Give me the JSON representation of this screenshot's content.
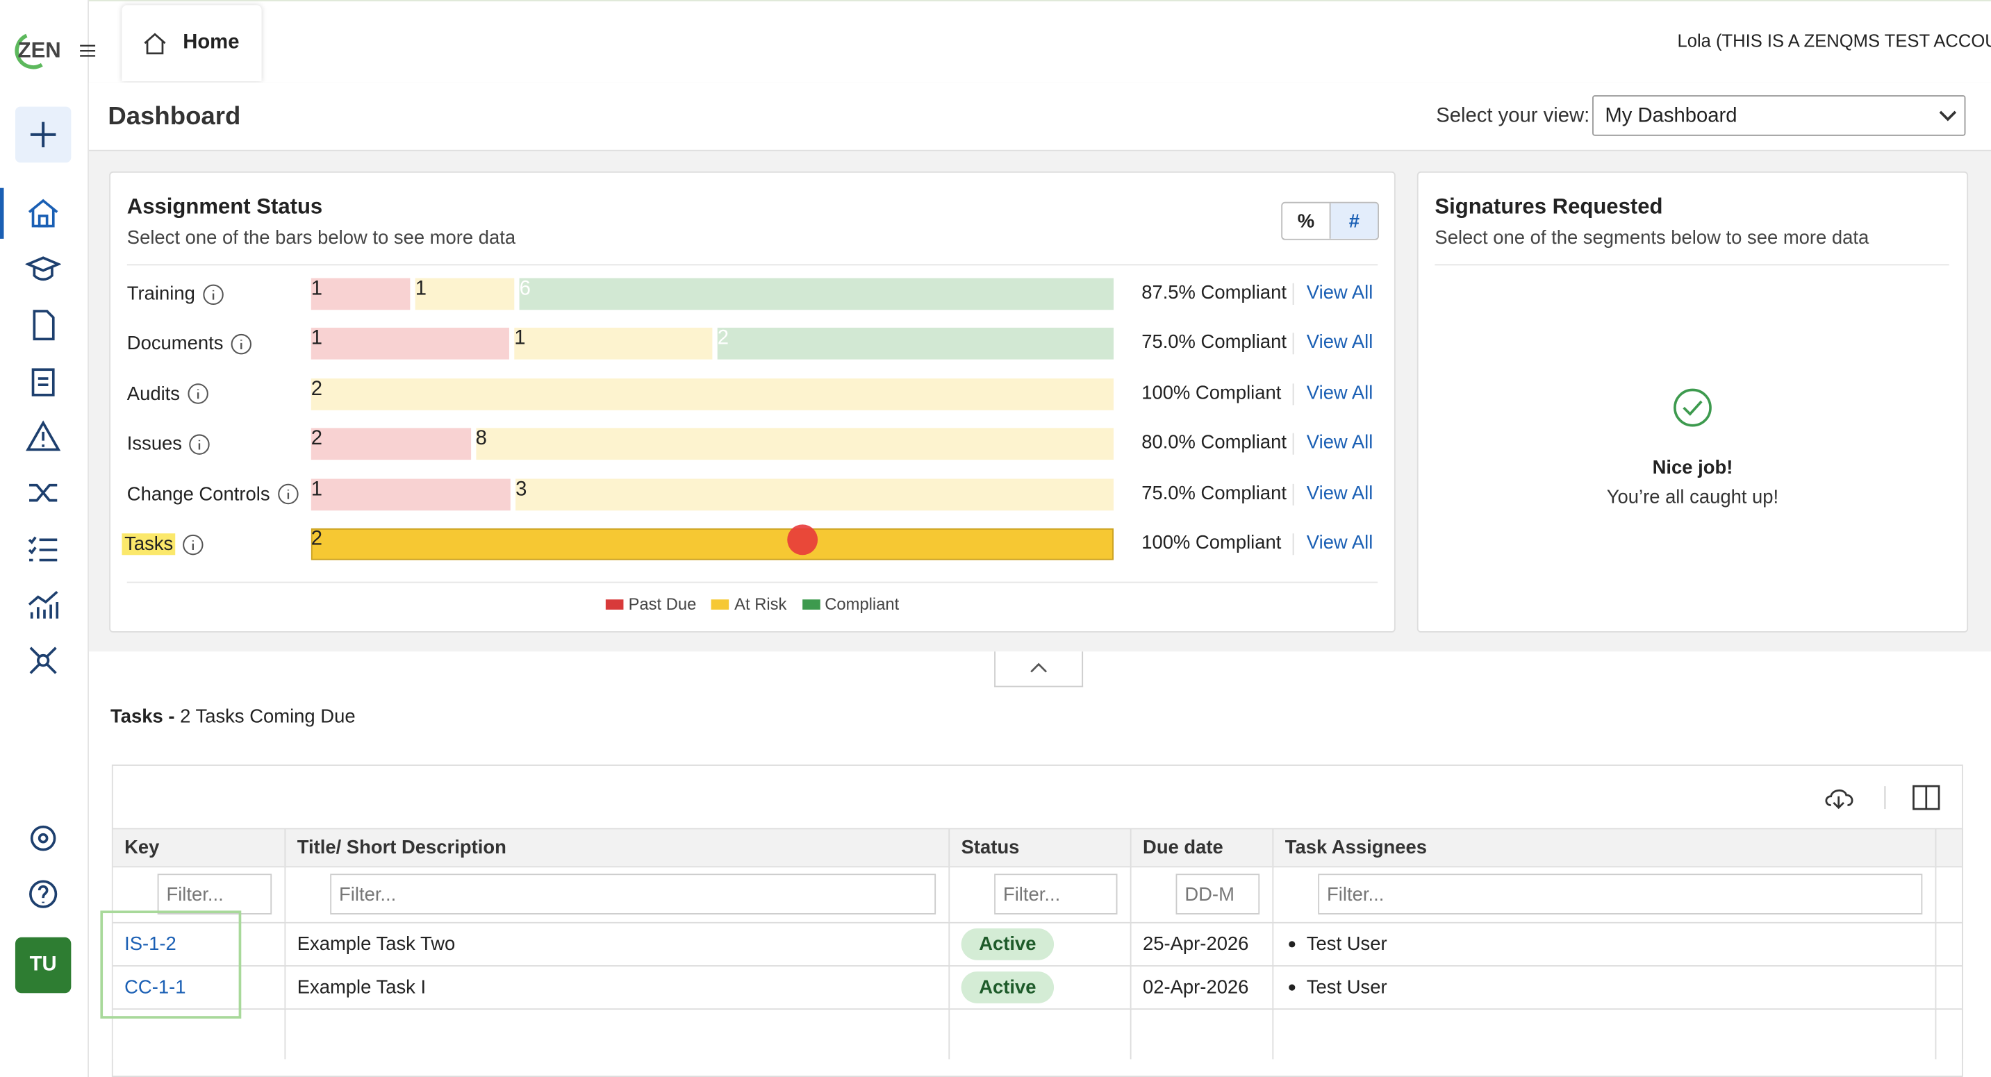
{
  "header": {
    "logo": "ZEN",
    "tab": "Home",
    "user": "Lola (THIS IS A ZENQMS TEST ACCOUNT)",
    "avatar": "TU"
  },
  "dashboard": {
    "title": "Dashboard",
    "view_label": "Select your view:",
    "view_value": "My Dashboard"
  },
  "assignment_status": {
    "title": "Assignment Status",
    "subtitle": "Select one of the bars below to see more data",
    "toggle": [
      "%",
      "#"
    ],
    "legend": [
      {
        "name": "Past Due",
        "color": "#d83a3a",
        "fill": "#f8d2d2"
      },
      {
        "name": "At Risk",
        "color": "#f6c833",
        "fill": "#fdf3cf"
      },
      {
        "name": "Compliant",
        "color": "#3d9a4e",
        "fill": "#d2e8d3"
      }
    ],
    "rows": [
      {
        "label": "Training",
        "values": [
          1,
          1,
          6
        ],
        "compliance": "87.5% Compliant",
        "link": "View All"
      },
      {
        "label": "Documents",
        "values": [
          1,
          1,
          2
        ],
        "compliance": "75.0% Compliant",
        "link": "View All"
      },
      {
        "label": "Audits",
        "values": [
          null,
          2,
          null
        ],
        "compliance": "100% Compliant",
        "link": "View All"
      },
      {
        "label": "Issues",
        "values": [
          2,
          8,
          null
        ],
        "compliance": "80.0% Compliant",
        "link": "View All"
      },
      {
        "label": "Change Controls",
        "values": [
          1,
          3,
          null
        ],
        "compliance": "75.0% Compliant",
        "link": "View All"
      },
      {
        "label": "Tasks",
        "values": [
          null,
          2,
          null
        ],
        "compliance": "100% Compliant",
        "link": "View All"
      }
    ]
  },
  "signatures": {
    "title": "Signatures Requested",
    "subtitle": "Select one of the segments below to see more data",
    "message": "Nice job!",
    "submessage": "You’re all caught up!"
  },
  "tasks": {
    "title": "Tasks -",
    "subtitle": "2 Tasks Coming Due",
    "columns": [
      "Key",
      "Title/ Short Description",
      "Status",
      "Due date",
      "Task Assignees"
    ],
    "filter_placeholder": "Filter...",
    "date_placeholder": "DD-M",
    "rows": [
      {
        "key": "IS-1-2",
        "title": "Example Task Two",
        "status": "Active",
        "due": "25-Apr-2026",
        "assignee": "Test User"
      },
      {
        "key": "CC-1-1",
        "title": "Example Task I",
        "status": "Active",
        "due": "02-Apr-2026",
        "assignee": "Test User"
      }
    ]
  }
}
